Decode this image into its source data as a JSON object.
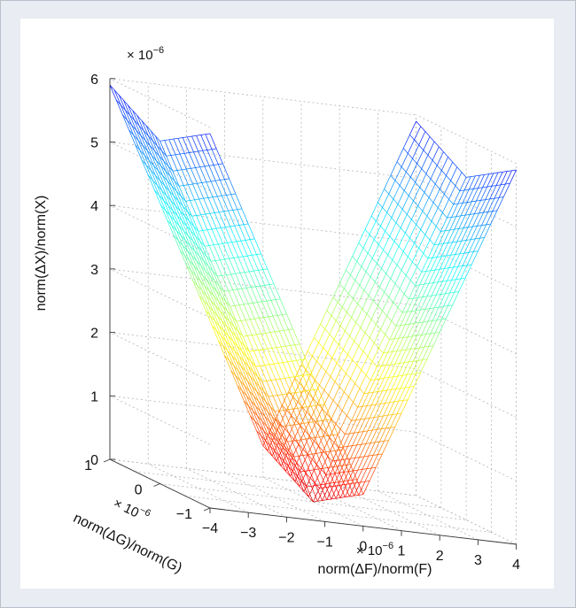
{
  "chart_data": {
    "type": "surface",
    "title": "",
    "xlabel": "norm(ΔF)/norm(F)",
    "ylabel": "norm(ΔG)/norm(G)",
    "zlabel": "norm(ΔX)/norm(X)",
    "x_ticks": [
      "−4",
      "−3",
      "−2",
      "−1",
      "0",
      "1",
      "2",
      "3",
      "4"
    ],
    "y_ticks": [
      "−1",
      "0",
      "1"
    ],
    "z_ticks": [
      "0",
      "1",
      "2",
      "3",
      "4",
      "5",
      "6"
    ],
    "x_range": [
      -4,
      4
    ],
    "y_range": [
      -1,
      1
    ],
    "z_range": [
      0,
      6
    ],
    "units_scale": "10^-6",
    "exponent_text": "× 10",
    "exponent_power": "−6",
    "grid": true,
    "colormap": "jet",
    "surface_model": "z = 1.35·|x| + 0.5·|y| (all ×10⁻⁶)",
    "corner_values": [
      {
        "x": -4,
        "y": -1,
        "z": 5.9
      },
      {
        "x": 4,
        "y": -1,
        "z": 5.9
      },
      {
        "x": -4,
        "y": 1,
        "z": 5.9
      },
      {
        "x": 4,
        "y": 1,
        "z": 5.9
      },
      {
        "x": 0,
        "y": 0,
        "z": 0
      }
    ]
  },
  "colors": {
    "panel_background": "#e9edf3",
    "panel_border": "#b9c1cc",
    "axes_background": "#ffffff",
    "grid_line": "#b5b5b5",
    "text": "#111111"
  }
}
